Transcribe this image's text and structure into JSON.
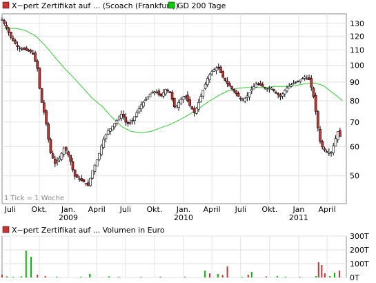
{
  "chart_data": [
    {
      "type": "candlestick",
      "legend": [
        {
          "name": "X−pert Zertifikat auf ... (Scoach (Frankfurt))",
          "color": "#cc3333"
        },
        {
          "name": "GD 200 Tage",
          "color": "#00cc00"
        }
      ],
      "legend_placement": "top",
      "note": "1 Tick = 1 Woche",
      "grid": true,
      "y_scale": "log",
      "y_ticks": [
        50,
        60,
        70,
        80,
        90,
        100,
        110,
        120,
        130
      ],
      "ylim": [
        42,
        138
      ],
      "x_range": [
        "2008-06-05",
        "2011-06-01"
      ],
      "x_ticks": [
        {
          "label": "Juli",
          "date": "2008-07-01"
        },
        {
          "label": "Okt.",
          "date": "2008-10-01"
        },
        {
          "label": "Jan.",
          "date": "2009-01-01",
          "year": "2009"
        },
        {
          "label": "April",
          "date": "2009-04-01"
        },
        {
          "label": "Juli",
          "date": "2009-07-01"
        },
        {
          "label": "Okt.",
          "date": "2009-10-01"
        },
        {
          "label": "Jan.",
          "date": "2010-01-01",
          "year": "2010"
        },
        {
          "label": "April",
          "date": "2010-04-01"
        },
        {
          "label": "Juli",
          "date": "2010-07-01"
        },
        {
          "label": "Okt.",
          "date": "2010-10-01"
        },
        {
          "label": "Jan",
          "date": "2011-01-01",
          "year": "2011"
        },
        {
          "label": "April",
          "date": "2011-04-01"
        }
      ],
      "close_points": [
        {
          "date": "2008-06-05",
          "value": 133
        },
        {
          "date": "2008-06-20",
          "value": 126
        },
        {
          "date": "2008-07-05",
          "value": 118
        },
        {
          "date": "2008-07-25",
          "value": 112
        },
        {
          "date": "2008-08-20",
          "value": 110
        },
        {
          "date": "2008-09-10",
          "value": 108
        },
        {
          "date": "2008-09-25",
          "value": 98
        },
        {
          "date": "2008-10-05",
          "value": 82
        },
        {
          "date": "2008-10-20",
          "value": 72
        },
        {
          "date": "2008-11-05",
          "value": 58
        },
        {
          "date": "2008-11-20",
          "value": 54
        },
        {
          "date": "2008-12-05",
          "value": 56
        },
        {
          "date": "2008-12-20",
          "value": 60
        },
        {
          "date": "2009-01-05",
          "value": 56
        },
        {
          "date": "2009-01-20",
          "value": 50
        },
        {
          "date": "2009-02-05",
          "value": 49
        },
        {
          "date": "2009-02-20",
          "value": 48
        },
        {
          "date": "2009-03-05",
          "value": 47
        },
        {
          "date": "2009-03-20",
          "value": 52
        },
        {
          "date": "2009-04-05",
          "value": 56
        },
        {
          "date": "2009-04-20",
          "value": 62
        },
        {
          "date": "2009-05-05",
          "value": 66
        },
        {
          "date": "2009-05-20",
          "value": 68
        },
        {
          "date": "2009-06-05",
          "value": 71
        },
        {
          "date": "2009-06-20",
          "value": 74
        },
        {
          "date": "2009-07-05",
          "value": 69
        },
        {
          "date": "2009-07-20",
          "value": 70
        },
        {
          "date": "2009-08-05",
          "value": 74
        },
        {
          "date": "2009-08-20",
          "value": 78
        },
        {
          "date": "2009-09-05",
          "value": 81
        },
        {
          "date": "2009-09-20",
          "value": 84
        },
        {
          "date": "2009-10-05",
          "value": 85
        },
        {
          "date": "2009-10-20",
          "value": 82
        },
        {
          "date": "2009-11-05",
          "value": 86
        },
        {
          "date": "2009-11-20",
          "value": 84
        },
        {
          "date": "2009-12-05",
          "value": 76
        },
        {
          "date": "2009-12-20",
          "value": 80
        },
        {
          "date": "2010-01-05",
          "value": 83
        },
        {
          "date": "2010-01-20",
          "value": 78
        },
        {
          "date": "2010-02-05",
          "value": 74
        },
        {
          "date": "2010-02-20",
          "value": 80
        },
        {
          "date": "2010-03-05",
          "value": 86
        },
        {
          "date": "2010-03-20",
          "value": 93
        },
        {
          "date": "2010-04-05",
          "value": 97
        },
        {
          "date": "2010-04-20",
          "value": 99
        },
        {
          "date": "2010-05-05",
          "value": 93
        },
        {
          "date": "2010-05-20",
          "value": 89
        },
        {
          "date": "2010-06-05",
          "value": 86
        },
        {
          "date": "2010-06-20",
          "value": 83
        },
        {
          "date": "2010-07-05",
          "value": 80
        },
        {
          "date": "2010-07-20",
          "value": 82
        },
        {
          "date": "2010-08-05",
          "value": 86
        },
        {
          "date": "2010-08-20",
          "value": 89
        },
        {
          "date": "2010-09-05",
          "value": 88
        },
        {
          "date": "2010-09-20",
          "value": 86
        },
        {
          "date": "2010-10-05",
          "value": 87
        },
        {
          "date": "2010-10-20",
          "value": 84
        },
        {
          "date": "2010-11-05",
          "value": 82
        },
        {
          "date": "2010-11-20",
          "value": 86
        },
        {
          "date": "2010-12-05",
          "value": 88
        },
        {
          "date": "2010-12-20",
          "value": 90
        },
        {
          "date": "2011-01-05",
          "value": 91
        },
        {
          "date": "2011-01-20",
          "value": 93
        },
        {
          "date": "2011-02-05",
          "value": 91
        },
        {
          "date": "2011-02-20",
          "value": 80
        },
        {
          "date": "2011-03-01",
          "value": 69
        },
        {
          "date": "2011-03-10",
          "value": 62
        },
        {
          "date": "2011-03-20",
          "value": 59
        },
        {
          "date": "2011-04-01",
          "value": 58
        },
        {
          "date": "2011-04-15",
          "value": 58
        },
        {
          "date": "2011-04-25",
          "value": 62
        },
        {
          "date": "2011-05-05",
          "value": 66
        },
        {
          "date": "2011-05-15",
          "value": 63
        }
      ],
      "ma200_points": [
        {
          "date": "2008-06-10",
          "value": 126
        },
        {
          "date": "2008-07-20",
          "value": 126
        },
        {
          "date": "2008-08-20",
          "value": 124
        },
        {
          "date": "2008-09-20",
          "value": 120
        },
        {
          "date": "2008-10-20",
          "value": 113
        },
        {
          "date": "2008-11-20",
          "value": 105
        },
        {
          "date": "2008-12-20",
          "value": 98
        },
        {
          "date": "2009-01-20",
          "value": 92
        },
        {
          "date": "2009-02-20",
          "value": 86
        },
        {
          "date": "2009-03-20",
          "value": 81
        },
        {
          "date": "2009-04-20",
          "value": 77
        },
        {
          "date": "2009-05-20",
          "value": 72
        },
        {
          "date": "2009-06-20",
          "value": 68
        },
        {
          "date": "2009-07-20",
          "value": 66
        },
        {
          "date": "2009-08-20",
          "value": 65.5
        },
        {
          "date": "2009-09-20",
          "value": 66
        },
        {
          "date": "2009-10-20",
          "value": 67.5
        },
        {
          "date": "2009-11-20",
          "value": 69
        },
        {
          "date": "2009-12-20",
          "value": 71
        },
        {
          "date": "2010-01-20",
          "value": 73.5
        },
        {
          "date": "2010-02-20",
          "value": 76.5
        },
        {
          "date": "2010-03-20",
          "value": 79.5
        },
        {
          "date": "2010-04-20",
          "value": 82.5
        },
        {
          "date": "2010-05-20",
          "value": 85
        },
        {
          "date": "2010-06-20",
          "value": 86.5
        },
        {
          "date": "2010-07-20",
          "value": 87
        },
        {
          "date": "2010-08-20",
          "value": 87
        },
        {
          "date": "2010-09-20",
          "value": 87
        },
        {
          "date": "2010-10-20",
          "value": 87.5
        },
        {
          "date": "2010-11-20",
          "value": 87.5
        },
        {
          "date": "2010-12-20",
          "value": 88
        },
        {
          "date": "2011-01-20",
          "value": 89
        },
        {
          "date": "2011-02-20",
          "value": 89.5
        },
        {
          "date": "2011-03-20",
          "value": 88
        },
        {
          "date": "2011-04-20",
          "value": 84
        },
        {
          "date": "2011-05-20",
          "value": 80
        }
      ]
    },
    {
      "type": "bar",
      "legend": [
        {
          "name": "X−pert Zertifikat auf ... Volumen in Euro",
          "color": "#cc3333"
        }
      ],
      "y_ticks": [
        "0T",
        "100T",
        "200T",
        "300T"
      ],
      "ylim": [
        0,
        300
      ],
      "unit": "T",
      "bars": [
        {
          "date": "2008-06-05",
          "value": 20,
          "color": "#cc3333"
        },
        {
          "date": "2008-06-20",
          "value": 8,
          "color": "#00bb00"
        },
        {
          "date": "2008-07-10",
          "value": 5,
          "color": "#00bb00"
        },
        {
          "date": "2008-08-05",
          "value": 8,
          "color": "#00bb00"
        },
        {
          "date": "2008-08-20",
          "value": 195,
          "color": "#00bb00"
        },
        {
          "date": "2008-09-05",
          "value": 150,
          "color": "#00bb00"
        },
        {
          "date": "2008-09-25",
          "value": 20,
          "color": "#cc3333"
        },
        {
          "date": "2008-10-20",
          "value": 10,
          "color": "#cc3333"
        },
        {
          "date": "2008-11-25",
          "value": 6,
          "color": "#00bb00"
        },
        {
          "date": "2009-02-10",
          "value": 6,
          "color": "#00bb00"
        },
        {
          "date": "2009-03-10",
          "value": 25,
          "color": "#00bb00"
        },
        {
          "date": "2009-05-10",
          "value": 8,
          "color": "#00bb00"
        },
        {
          "date": "2009-06-10",
          "value": 6,
          "color": "#00bb00"
        },
        {
          "date": "2009-08-20",
          "value": 5,
          "color": "#00bb00"
        },
        {
          "date": "2009-10-20",
          "value": 6,
          "color": "#cc3333"
        },
        {
          "date": "2010-01-05",
          "value": 6,
          "color": "#00bb00"
        },
        {
          "date": "2010-03-10",
          "value": 50,
          "color": "#00bb00"
        },
        {
          "date": "2010-03-25",
          "value": 30,
          "color": "#cc3333"
        },
        {
          "date": "2010-04-20",
          "value": 25,
          "color": "#00bb00"
        },
        {
          "date": "2010-05-05",
          "value": 18,
          "color": "#cc3333"
        },
        {
          "date": "2010-05-20",
          "value": 80,
          "color": "#cc3333"
        },
        {
          "date": "2010-07-05",
          "value": 5,
          "color": "#00bb00"
        },
        {
          "date": "2010-07-25",
          "value": 20,
          "color": "#cc3333"
        },
        {
          "date": "2010-08-05",
          "value": 40,
          "color": "#00bb00"
        },
        {
          "date": "2010-09-20",
          "value": 8,
          "color": "#cc3333"
        },
        {
          "date": "2010-10-25",
          "value": 10,
          "color": "#00bb00"
        },
        {
          "date": "2010-11-20",
          "value": 6,
          "color": "#00bb00"
        },
        {
          "date": "2011-01-05",
          "value": 5,
          "color": "#00bb00"
        },
        {
          "date": "2011-02-25",
          "value": 10,
          "color": "#00bb00"
        },
        {
          "date": "2011-03-05",
          "value": 110,
          "color": "#cc3333"
        },
        {
          "date": "2011-03-15",
          "value": 90,
          "color": "#cc3333"
        },
        {
          "date": "2011-03-25",
          "value": 30,
          "color": "#cc3333"
        },
        {
          "date": "2011-04-10",
          "value": 10,
          "color": "#00bb00"
        },
        {
          "date": "2011-04-25",
          "value": 35,
          "color": "#00bb00"
        },
        {
          "date": "2011-05-10",
          "value": 50,
          "color": "#cc3333"
        }
      ]
    }
  ]
}
